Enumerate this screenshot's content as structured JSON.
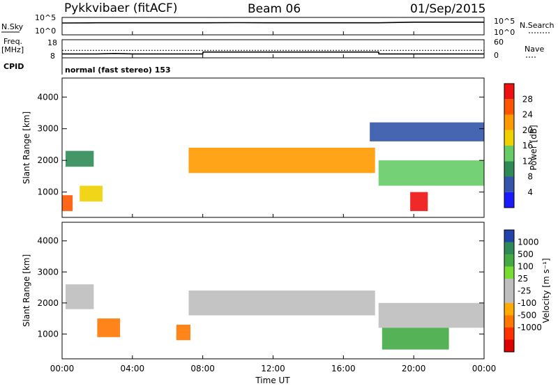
{
  "header": {
    "radar": "Pykkvibaer (fitACF)",
    "beam": "Beam 06",
    "date": "01/Sep/2015"
  },
  "panels": {
    "nsky": {
      "label": "N.Sky",
      "ticks": [
        "10^5",
        "10^0"
      ],
      "right_ticks": [
        "10^5",
        "10^0"
      ],
      "right_label": "N.Search"
    },
    "freq": {
      "label": "Freq.",
      "unit": "[MHz]",
      "ticks": [
        "18",
        "8"
      ],
      "right_ticks": [
        "60",
        "0"
      ],
      "right_label": "Nave"
    },
    "cpid": {
      "label": "CPID",
      "text": "normal (fast stereo) 153"
    }
  },
  "colors": {
    "power": [
      "#1a1aff",
      "#3355aa",
      "#2e8b57",
      "#66cc66",
      "#f0d000",
      "#ff9900",
      "#ff5500",
      "#ee1111"
    ],
    "velocity": [
      "#2244aa",
      "#2e8b57",
      "#44aa44",
      "#77dd33",
      "#bebebe",
      "#bebebe",
      "#ffaa00",
      "#ff7700",
      "#ff3300",
      "#dd0000"
    ]
  },
  "chart_data": [
    {
      "type": "line",
      "title": "",
      "xlabel": "Time UT",
      "ylabel": "N.Sky",
      "x": [
        "00:00",
        "02:00",
        "04:00",
        "06:00",
        "08:00",
        "10:00",
        "12:00",
        "14:00",
        "16:00",
        "18:00",
        "20:00",
        "22:00",
        "24:00"
      ],
      "series": [
        {
          "name": "N.Sky",
          "values": [
            10000,
            12000,
            12000,
            12000,
            12000,
            13000,
            12000,
            12000,
            12000,
            12000,
            20000,
            20000,
            20000
          ]
        },
        {
          "name": "N.Search",
          "values": [
            5,
            5,
            5,
            5,
            5,
            5,
            5,
            5,
            5,
            5,
            5,
            5,
            5
          ]
        }
      ]
    },
    {
      "type": "line",
      "title": "",
      "xlabel": "Time UT",
      "ylabel": "Freq. [MHz]",
      "ylim": [
        8,
        18
      ],
      "x": [
        "00:00",
        "01:00",
        "02:00",
        "03:00",
        "04:00",
        "08:00",
        "08:01",
        "12:00",
        "16:00",
        "18:00",
        "18:01",
        "22:00",
        "24:00"
      ],
      "series": [
        {
          "name": "Freq.",
          "values": [
            10.2,
            10.2,
            10.2,
            10.5,
            10.2,
            10.2,
            11.5,
            11.5,
            11.5,
            11.5,
            10.2,
            10.2,
            10.2
          ]
        },
        {
          "name": "Nave",
          "values": [
            28,
            28,
            28,
            28,
            28,
            28,
            28,
            28,
            28,
            28,
            28,
            28,
            28
          ]
        }
      ]
    },
    {
      "type": "heatmap",
      "title": "Power",
      "xlabel": "Time UT",
      "ylabel": "Slant Range [km]",
      "ylim": [
        200,
        4600
      ],
      "xticks": [
        "00:00",
        "04:00",
        "08:00",
        "12:00",
        "16:00",
        "20:00",
        "00:00"
      ],
      "yticks": [
        1000,
        2000,
        3000,
        4000
      ],
      "colorbar": {
        "label": "Power [dB]",
        "ticks": [
          4,
          8,
          12,
          16,
          20,
          24,
          28
        ],
        "range": [
          0,
          32
        ]
      },
      "features": [
        {
          "x0": 0.2,
          "x1": 1.8,
          "y0": 1800,
          "y1": 2300,
          "value": 10
        },
        {
          "x0": 0.0,
          "x1": 0.6,
          "y0": 400,
          "y1": 900,
          "value": 26
        },
        {
          "x0": 1.0,
          "x1": 2.3,
          "y0": 700,
          "y1": 1200,
          "value": 18
        },
        {
          "x0": 7.2,
          "x1": 17.8,
          "y0": 1600,
          "y1": 2400,
          "value": 20
        },
        {
          "x0": 18.0,
          "x1": 24.0,
          "y0": 1200,
          "y1": 2000,
          "value": 14
        },
        {
          "x0": 19.8,
          "x1": 20.8,
          "y0": 400,
          "y1": 1000,
          "value": 28
        },
        {
          "x0": 17.5,
          "x1": 24.0,
          "y0": 2600,
          "y1": 3200,
          "value": 6
        }
      ]
    },
    {
      "type": "heatmap",
      "title": "Velocity",
      "xlabel": "Time UT",
      "ylabel": "Slant Range [km]",
      "ylim": [
        200,
        4600
      ],
      "xticks": [
        "00:00",
        "04:00",
        "08:00",
        "12:00",
        "16:00",
        "20:00",
        "00:00"
      ],
      "yticks": [
        1000,
        2000,
        3000,
        4000
      ],
      "colorbar": {
        "label": "Velocity [m s⁻¹]",
        "ticks": [
          "1000",
          "500",
          "100",
          "25",
          "-25",
          "-100",
          "-500",
          "-1000"
        ]
      },
      "features": [
        {
          "x0": 0.2,
          "x1": 1.8,
          "y0": 1800,
          "y1": 2600,
          "value": 0
        },
        {
          "x0": 7.2,
          "x1": 17.8,
          "y0": 1600,
          "y1": 2400,
          "value": 0
        },
        {
          "x0": 18.0,
          "x1": 24.0,
          "y0": 1200,
          "y1": 2000,
          "value": 0
        },
        {
          "x0": 2.0,
          "x1": 3.3,
          "y0": 900,
          "y1": 1500,
          "value": -250
        },
        {
          "x0": 18.2,
          "x1": 22.0,
          "y0": 500,
          "y1": 1200,
          "value": 300
        },
        {
          "x0": 6.5,
          "x1": 7.3,
          "y0": 800,
          "y1": 1300,
          "value": -300
        }
      ]
    }
  ]
}
